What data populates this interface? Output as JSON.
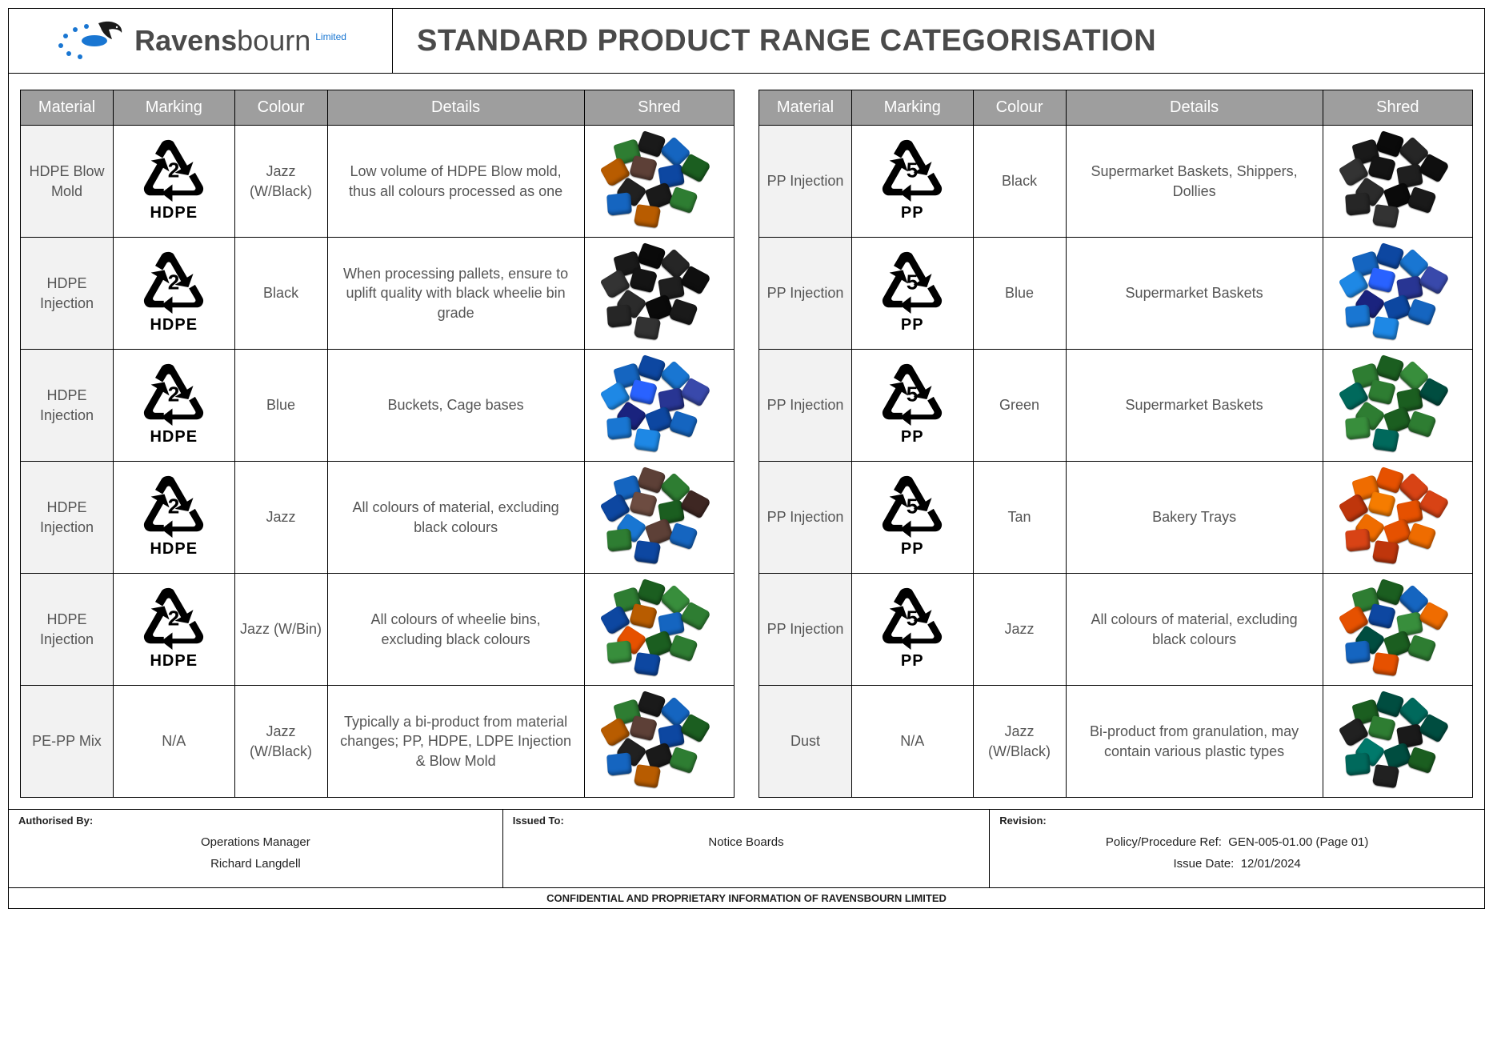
{
  "brand": {
    "name_bold": "Ravens",
    "name_rest": "bourn",
    "suffix": "Limited",
    "dot_color": "#1976d2",
    "bird_color": "#1a1a1a"
  },
  "title": "STANDARD PRODUCT RANGE CATEGORISATION",
  "columns": [
    "Material",
    "Marking",
    "Colour",
    "Details",
    "Shred"
  ],
  "shred_palettes": {
    "mixed": [
      "#1a1a1a",
      "#2e7d32",
      "#1565c0",
      "#b85c00",
      "#5d4037",
      "#0d47a1",
      "#1b5e20",
      "#212121"
    ],
    "black": [
      "#0a0a0a",
      "#1a1a1a",
      "#262626",
      "#333333",
      "#141414",
      "#1f1f1f",
      "#0f0f0f",
      "#2b2b2b"
    ],
    "blue": [
      "#0d47a1",
      "#1565c0",
      "#1976d2",
      "#1e88e5",
      "#2962ff",
      "#283593",
      "#3949ab",
      "#1a237e"
    ],
    "jazz": [
      "#5d4037",
      "#1565c0",
      "#2e7d32",
      "#0d47a1",
      "#6d4c41",
      "#1b5e20",
      "#3e2723",
      "#1976d2"
    ],
    "jazz_green": [
      "#1b5e20",
      "#2e7d32",
      "#388e3c",
      "#0d47a1",
      "#b85c00",
      "#1565c0",
      "#2e7d32",
      "#e65100"
    ],
    "green": [
      "#1b5e20",
      "#2e7d32",
      "#388e3c",
      "#00695c",
      "#2e7d32",
      "#1b5e20",
      "#004d40",
      "#2e7d32"
    ],
    "tan": [
      "#e65100",
      "#ef6c00",
      "#d84315",
      "#bf360c",
      "#f57c00",
      "#e65100",
      "#d84315",
      "#ef6c00"
    ],
    "jazz_rgb": [
      "#1b5e20",
      "#2e7d32",
      "#1565c0",
      "#e65100",
      "#0d47a1",
      "#388e3c",
      "#ef6c00",
      "#004d40"
    ],
    "dust": [
      "#004d40",
      "#1b5e20",
      "#00695c",
      "#212121",
      "#2e7d32",
      "#1a1a1a",
      "#004d40",
      "#00796b"
    ]
  },
  "left_rows": [
    {
      "material": "HDPE Blow Mold",
      "marking_num": "2",
      "marking_code": "HDPE",
      "colour": "Jazz (W/Black)",
      "details": "Low volume of HDPE Blow mold, thus all colours processed as one",
      "shred": "mixed"
    },
    {
      "material": "HDPE Injection",
      "marking_num": "2",
      "marking_code": "HDPE",
      "colour": "Black",
      "details": "When processing pallets, ensure to uplift quality with black wheelie bin grade",
      "shred": "black"
    },
    {
      "material": "HDPE Injection",
      "marking_num": "2",
      "marking_code": "HDPE",
      "colour": "Blue",
      "details": "Buckets, Cage bases",
      "shred": "blue"
    },
    {
      "material": "HDPE Injection",
      "marking_num": "2",
      "marking_code": "HDPE",
      "colour": "Jazz",
      "details": "All colours of material, excluding black colours",
      "shred": "jazz"
    },
    {
      "material": "HDPE Injection",
      "marking_num": "2",
      "marking_code": "HDPE",
      "colour": "Jazz (W/Bin)",
      "details": "All colours of wheelie bins, excluding black colours",
      "shred": "jazz_green"
    },
    {
      "material": "PE-PP Mix",
      "marking_num": null,
      "marking_code": "N/A",
      "colour": "Jazz (W/Black)",
      "details": "Typically a bi-product from material changes; PP, HDPE, LDPE Injection & Blow Mold",
      "shred": "mixed"
    }
  ],
  "right_rows": [
    {
      "material": "PP Injection",
      "marking_num": "5",
      "marking_code": "PP",
      "colour": "Black",
      "details": "Supermarket Baskets, Shippers, Dollies",
      "shred": "black"
    },
    {
      "material": "PP Injection",
      "marking_num": "5",
      "marking_code": "PP",
      "colour": "Blue",
      "details": "Supermarket Baskets",
      "shred": "blue"
    },
    {
      "material": "PP Injection",
      "marking_num": "5",
      "marking_code": "PP",
      "colour": "Green",
      "details": "Supermarket Baskets",
      "shred": "green"
    },
    {
      "material": "PP Injection",
      "marking_num": "5",
      "marking_code": "PP",
      "colour": "Tan",
      "details": "Bakery Trays",
      "shred": "tan"
    },
    {
      "material": "PP Injection",
      "marking_num": "5",
      "marking_code": "PP",
      "colour": "Jazz",
      "details": "All colours of material, excluding black colours",
      "shred": "jazz_rgb"
    },
    {
      "material": "Dust",
      "marking_num": null,
      "marking_code": "N/A",
      "colour": "Jazz (W/Black)",
      "details": "Bi-product from granulation, may contain various plastic types",
      "shred": "dust"
    }
  ],
  "footer": {
    "authorised_label": "Authorised By:",
    "authorised_role": "Operations Manager",
    "authorised_name": "Richard Langdell",
    "issued_label": "Issued To:",
    "issued_value": "Notice Boards",
    "revision_label": "Revision:",
    "policy_ref_label": "Policy/Procedure Ref:",
    "policy_ref_value": "GEN-005-01.00 (Page 01)",
    "issue_date_label": "Issue Date:",
    "issue_date_value": "12/01/2024",
    "confidential": "CONFIDENTIAL AND PROPRIETARY INFORMATION OF RAVENSBOURN LIMITED"
  }
}
